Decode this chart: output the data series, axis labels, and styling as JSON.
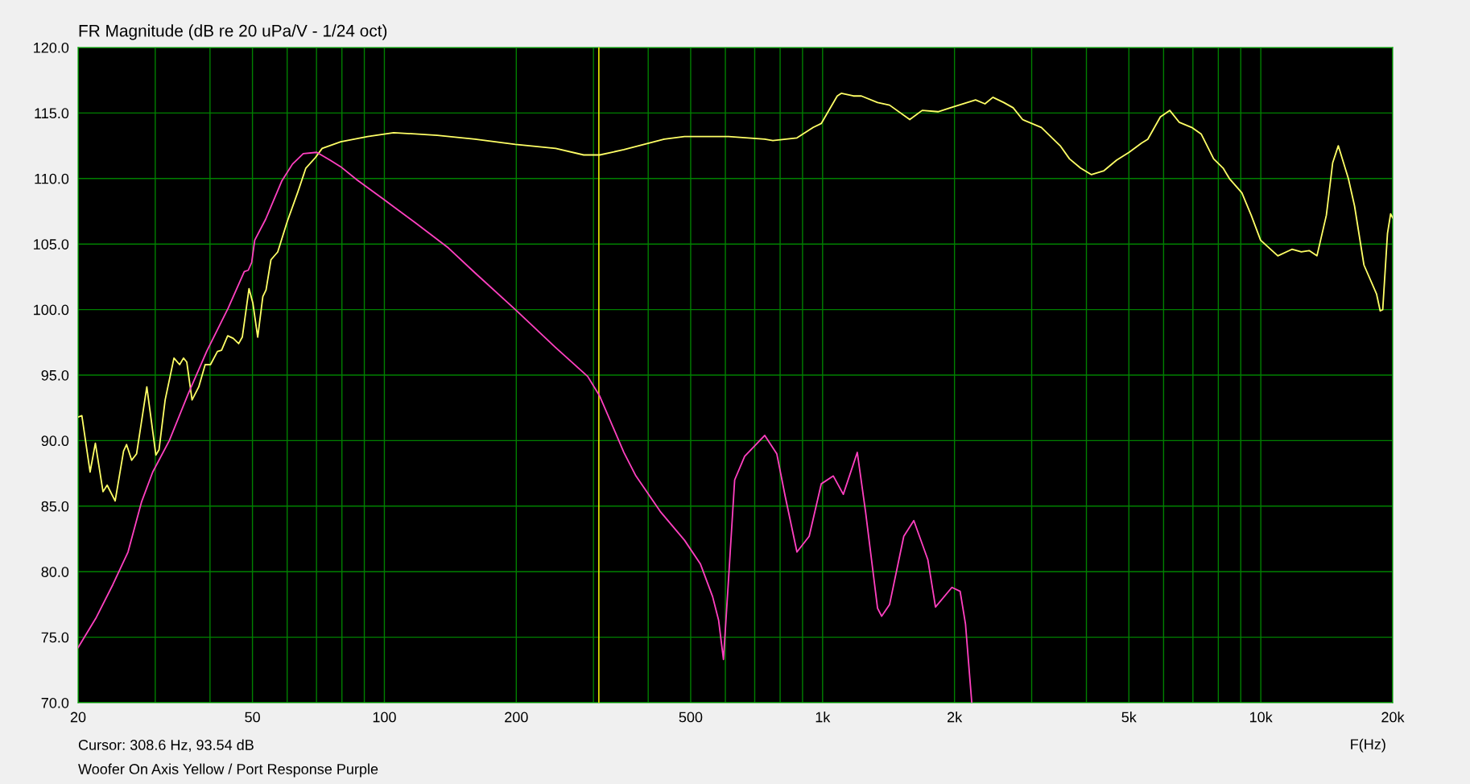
{
  "chart_data": {
    "type": "line",
    "title": "FR Magnitude (dB re 20 uPa/V - 1/24 oct)",
    "xlabel": "F(Hz)",
    "annotations": [
      "Cursor: 308.6 Hz, 93.54 dB",
      "Woofer On Axis Yellow / Port Response Purple"
    ],
    "log": "x",
    "grid": true,
    "marker": "none",
    "line_style": "solid",
    "xlim": [
      20,
      20000
    ],
    "ylim": [
      70,
      120
    ],
    "xticks": [
      20,
      {
        "value": 30,
        "label": null
      },
      {
        "value": 40,
        "label": null
      },
      50,
      {
        "value": 60,
        "label": null
      },
      {
        "value": 70,
        "label": null
      },
      {
        "value": 80,
        "label": null
      },
      {
        "value": 90,
        "label": null
      },
      100,
      200,
      {
        "value": 300,
        "label": null
      },
      {
        "value": 400,
        "label": null
      },
      500,
      {
        "value": 600,
        "label": null
      },
      {
        "value": 700,
        "label": null
      },
      {
        "value": 800,
        "label": null
      },
      {
        "value": 900,
        "label": null
      },
      {
        "value": 1000,
        "label": "1k"
      },
      {
        "value": 2000,
        "label": "2k"
      },
      {
        "value": 3000,
        "label": null
      },
      {
        "value": 4000,
        "label": null
      },
      {
        "value": 5000,
        "label": "5k"
      },
      {
        "value": 6000,
        "label": null
      },
      {
        "value": 7000,
        "label": null
      },
      {
        "value": 8000,
        "label": null
      },
      {
        "value": 9000,
        "label": null
      },
      {
        "value": 10000,
        "label": "10k"
      },
      {
        "value": 20000,
        "label": "20k"
      }
    ],
    "yticks": [
      {
        "value": 70,
        "label": "70.0"
      },
      {
        "value": 75,
        "label": "75.0"
      },
      {
        "value": 80,
        "label": "80.0"
      },
      {
        "value": 85,
        "label": "85.0"
      },
      {
        "value": 90,
        "label": "90.0"
      },
      {
        "value": 95,
        "label": "95.0"
      },
      {
        "value": 100,
        "label": "100.0"
      },
      {
        "value": 105,
        "label": "105.0"
      },
      {
        "value": 110,
        "label": "110.0"
      },
      {
        "value": 115,
        "label": "115.0"
      },
      {
        "value": 120,
        "label": "120.0"
      }
    ],
    "ref_lines": [
      {
        "axis": "x",
        "value": 308.6,
        "color": "#e6e600"
      }
    ],
    "series": [
      {
        "color": "#ffff66",
        "x": [
          20,
          20.4,
          21.3,
          21.9,
          22.8,
          23.3,
          24.3,
          25.4,
          25.8,
          26.5,
          27.2,
          28.7,
          30.1,
          30.6,
          31.6,
          33.1,
          34.1,
          34.8,
          35.4,
          36.4,
          37.7,
          39.0,
          40.1,
          41.6,
          42.5,
          43.9,
          45.2,
          46.5,
          47.4,
          49.1,
          50.1,
          51.4,
          52.8,
          53.7,
          55.1,
          57.1,
          60,
          63.5,
          66.2,
          69.6,
          72.1,
          79.5,
          91.6,
          105,
          132,
          161,
          199,
          246,
          285,
          310,
          352,
          435,
          484,
          610,
          738,
          770,
          874,
          952,
          993,
          1080,
          1103,
          1176,
          1226,
          1335,
          1422,
          1581,
          1688,
          1834,
          1958,
          2234,
          2347,
          2447,
          2591,
          2722,
          2860,
          3157,
          3485,
          3660,
          3877,
          4107,
          4387,
          4686,
          5004,
          5345,
          5522,
          5899,
          6197,
          6511,
          6957,
          7309,
          7806,
          8203,
          8478,
          9055,
          9508,
          9988,
          10937,
          11776,
          12373,
          12891,
          13432,
          14113,
          14589,
          15025,
          15841,
          16367,
          17195,
          18368,
          18726,
          18978,
          19457,
          19780,
          20000
        ],
        "values": [
          91.8,
          91.9,
          87.6,
          89.8,
          86.1,
          86.6,
          85.4,
          89.2,
          89.7,
          88.5,
          89.0,
          94.1,
          88.9,
          89.3,
          93.1,
          96.3,
          95.8,
          96.3,
          96.0,
          93.1,
          94.1,
          95.8,
          95.8,
          96.8,
          96.9,
          98.0,
          97.8,
          97.4,
          97.9,
          101.6,
          100.5,
          97.9,
          101.0,
          101.5,
          103.8,
          104.4,
          106.7,
          109.0,
          110.8,
          111.6,
          112.3,
          112.8,
          113.2,
          113.5,
          113.3,
          113.0,
          112.6,
          112.3,
          111.8,
          111.8,
          112.2,
          113.0,
          113.2,
          113.2,
          113.0,
          112.9,
          113.1,
          113.9,
          114.2,
          116.3,
          116.5,
          116.3,
          116.3,
          115.8,
          115.6,
          114.5,
          115.2,
          115.1,
          115.4,
          116.0,
          115.7,
          116.2,
          115.8,
          115.4,
          114.5,
          113.9,
          112.5,
          111.5,
          110.8,
          110.3,
          110.6,
          111.4,
          112.0,
          112.7,
          113.0,
          114.7,
          115.2,
          114.3,
          113.9,
          113.4,
          111.5,
          110.8,
          110.0,
          108.9,
          107.2,
          105.3,
          104.1,
          104.6,
          104.4,
          104.5,
          104.1,
          107.2,
          111.2,
          112.5,
          110.0,
          107.9,
          103.4,
          101.2,
          99.9,
          100.0,
          105.8,
          107.3,
          107.0
        ]
      },
      {
        "color": "#ff40c0",
        "x": [
          20,
          22,
          24,
          26,
          27.9,
          29.6,
          32.3,
          35.6,
          39.3,
          44.0,
          47.9,
          48.9,
          49.8,
          50.6,
          53.6,
          58.3,
          61.7,
          65.3,
          70.1,
          75.2,
          79.5,
          86.6,
          99.7,
          118,
          140,
          161,
          199,
          246,
          291,
          310,
          352,
          375,
          426,
          484,
          526,
          561,
          579,
          594,
          610,
          630,
          664,
          738,
          786,
          821,
          874,
          932,
          993,
          1058,
          1115,
          1200,
          1253,
          1335,
          1364,
          1422,
          1532,
          1615,
          1739,
          1810,
          1973,
          2060,
          2119,
          2190
        ],
        "values": [
          74.2,
          76.5,
          79.0,
          81.5,
          85.3,
          87.6,
          90.0,
          93.5,
          96.8,
          100.1,
          102.9,
          103.0,
          103.6,
          105.3,
          106.9,
          109.8,
          111.1,
          111.9,
          112.0,
          111.4,
          110.9,
          109.9,
          108.4,
          106.6,
          104.7,
          102.8,
          100.0,
          97.1,
          94.9,
          93.4,
          89.1,
          87.3,
          84.6,
          82.4,
          80.6,
          78.1,
          76.3,
          73.3,
          79.4,
          87.0,
          88.8,
          90.4,
          89.0,
          85.8,
          81.5,
          82.7,
          86.7,
          87.3,
          85.9,
          89.1,
          84.6,
          77.2,
          76.6,
          77.5,
          82.7,
          83.9,
          80.9,
          77.3,
          78.8,
          78.5,
          76.0,
          70.0
        ]
      }
    ]
  }
}
